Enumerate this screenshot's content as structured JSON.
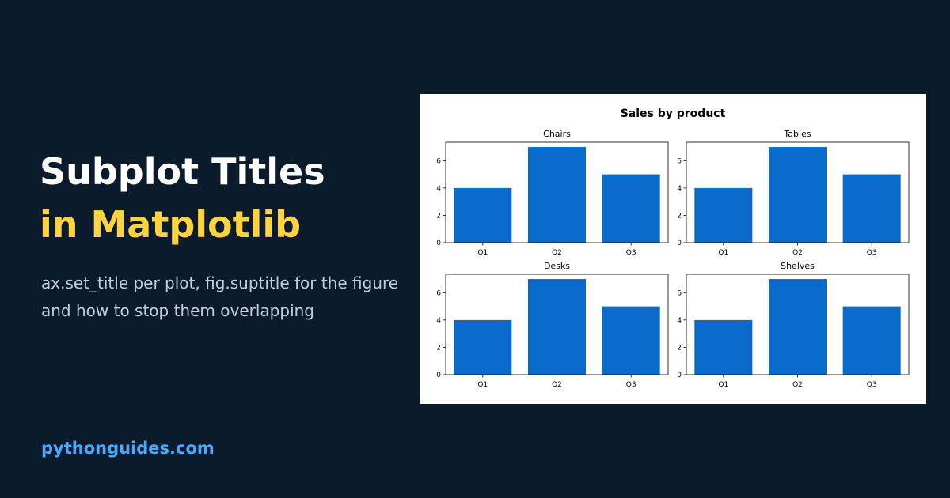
{
  "headline": {
    "line1": "Subplot Titles",
    "line2": "in Matplotlib"
  },
  "subtitle": [
    "ax.set_title per plot, fig.suptitle for the figure",
    "and how to stop them overlapping"
  ],
  "site": "pythonguides.com",
  "figure_title": "Sales by product",
  "chart_data": [
    {
      "type": "bar",
      "title": "Chairs",
      "categories": [
        "Q1",
        "Q2",
        "Q3"
      ],
      "values": [
        4,
        7,
        5
      ],
      "color": "#0b6bcb",
      "ylim": [
        0,
        7.35
      ],
      "yticks": [
        0,
        2,
        4,
        6
      ]
    },
    {
      "type": "bar",
      "title": "Tables",
      "categories": [
        "Q1",
        "Q2",
        "Q3"
      ],
      "values": [
        4,
        7,
        5
      ],
      "color": "#0b6bcb",
      "ylim": [
        0,
        7.35
      ],
      "yticks": [
        0,
        2,
        4,
        6
      ]
    },
    {
      "type": "bar",
      "title": "Desks",
      "categories": [
        "Q1",
        "Q2",
        "Q3"
      ],
      "values": [
        4,
        7,
        5
      ],
      "color": "#0b6bcb",
      "ylim": [
        0,
        7.35
      ],
      "yticks": [
        0,
        2,
        4,
        6
      ]
    },
    {
      "type": "bar",
      "title": "Shelves",
      "categories": [
        "Q1",
        "Q2",
        "Q3"
      ],
      "values": [
        4,
        7,
        5
      ],
      "color": "#0b6bcb",
      "ylim": [
        0,
        7.35
      ],
      "yticks": [
        0,
        2,
        4,
        6
      ]
    }
  ]
}
